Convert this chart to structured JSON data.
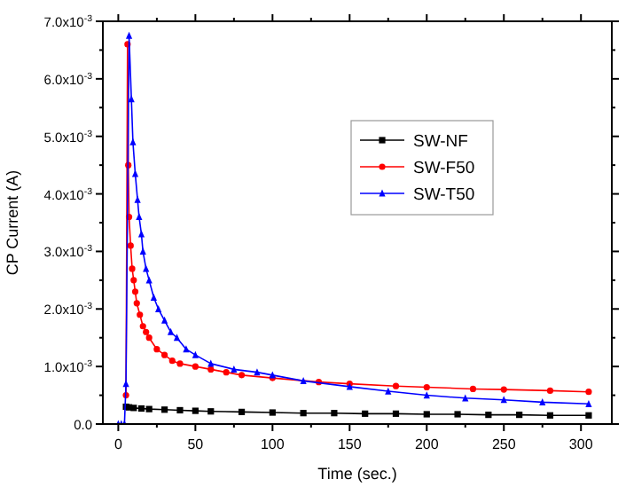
{
  "chart_data": {
    "type": "line",
    "xlabel": "Time (sec.)",
    "ylabel": "CP Current (A)",
    "xlim": [
      -10,
      320
    ],
    "ylim": [
      0,
      0.007
    ],
    "xticks": [
      0,
      {
        "value": 25,
        "label": null
      },
      50,
      {
        "value": 75,
        "label": null
      },
      100,
      {
        "value": 125,
        "label": null
      },
      150,
      {
        "value": 175,
        "label": null
      },
      200,
      {
        "value": 225,
        "label": null
      },
      250,
      {
        "value": 275,
        "label": null
      },
      300
    ],
    "yticks": [
      {
        "value": 0,
        "label": "0.0"
      },
      {
        "value": 0.0005,
        "label": null
      },
      {
        "value": 0.001,
        "label": "1.0x10$^{-3}$"
      },
      {
        "value": 0.0015,
        "label": null
      },
      {
        "value": 0.002,
        "label": "2.0x10$^{-3}$"
      },
      {
        "value": 0.0025,
        "label": null
      },
      {
        "value": 0.003,
        "label": "3.0x10$^{-3}$"
      },
      {
        "value": 0.0035,
        "label": null
      },
      {
        "value": 0.004,
        "label": "4.0x10$^{-3}$"
      },
      {
        "value": 0.0045,
        "label": null
      },
      {
        "value": 0.005,
        "label": "5.0x10$^{-3}$"
      },
      {
        "value": 0.0055,
        "label": null
      },
      {
        "value": 0.006,
        "label": "6.0x10$^{-3}$"
      },
      {
        "value": 0.0065,
        "label": null
      },
      {
        "value": 0.007,
        "label": "7.0x10$^{-3}$"
      }
    ],
    "legend": "top right",
    "grid": false,
    "line_style": "solid",
    "series": [
      {
        "name": "SW-NF",
        "color": "#000000",
        "marker": "square",
        "x": [
          5,
          7,
          10,
          15,
          20,
          30,
          40,
          50,
          60,
          80,
          100,
          120,
          140,
          160,
          180,
          200,
          220,
          240,
          260,
          280,
          305
        ],
        "values": [
          0.0003,
          0.00029,
          0.00028,
          0.00027,
          0.00026,
          0.00025,
          0.00024,
          0.00023,
          0.00022,
          0.00021,
          0.0002,
          0.00019,
          0.00019,
          0.00018,
          0.00018,
          0.00017,
          0.00017,
          0.00016,
          0.00016,
          0.00015,
          0.00015
        ]
      },
      {
        "name": "SW-F50",
        "color": "#ff0000",
        "marker": "circle",
        "x": [
          5,
          6,
          6.5,
          7,
          8,
          9,
          10,
          11,
          12,
          14,
          16,
          18,
          20,
          25,
          30,
          35,
          40,
          50,
          60,
          70,
          80,
          100,
          130,
          150,
          180,
          200,
          230,
          250,
          280,
          305
        ],
        "values": [
          0.0005,
          0.0066,
          0.0045,
          0.0036,
          0.0031,
          0.0027,
          0.0025,
          0.0023,
          0.0021,
          0.0019,
          0.0017,
          0.0016,
          0.0015,
          0.0013,
          0.0012,
          0.0011,
          0.00105,
          0.001,
          0.00095,
          0.0009,
          0.00085,
          0.0008,
          0.00073,
          0.0007,
          0.00066,
          0.00064,
          0.00061,
          0.0006,
          0.00058,
          0.00056
        ]
      },
      {
        "name": "SW-T50",
        "color": "#0000ff",
        "marker": "triangle",
        "x": [
          0,
          2,
          4,
          5,
          7,
          8.5,
          9.5,
          11,
          12.5,
          13.5,
          15,
          16,
          18,
          20,
          23,
          26,
          30,
          34,
          38,
          44,
          50,
          60,
          75,
          90,
          100,
          120,
          150,
          175,
          200,
          225,
          250,
          275,
          305
        ],
        "values": [
          0,
          0,
          0,
          0.0007,
          0.00675,
          0.00565,
          0.0049,
          0.00435,
          0.0039,
          0.0036,
          0.0033,
          0.003,
          0.0027,
          0.0025,
          0.0022,
          0.002,
          0.0018,
          0.0016,
          0.0015,
          0.0013,
          0.0012,
          0.00105,
          0.00095,
          0.0009,
          0.00085,
          0.00075,
          0.00065,
          0.00057,
          0.0005,
          0.00045,
          0.00042,
          0.00038,
          0.00035
        ]
      }
    ]
  }
}
